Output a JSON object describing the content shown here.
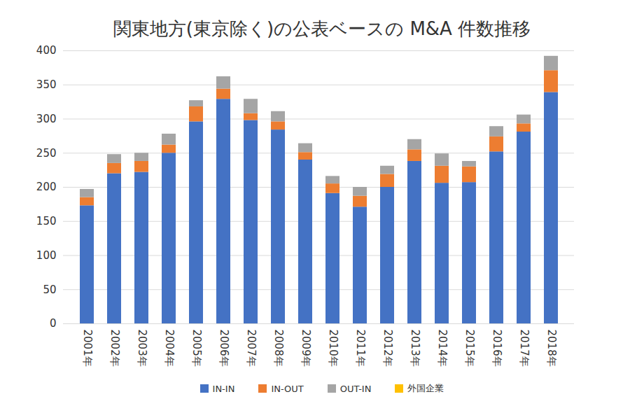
{
  "chart_data": {
    "type": "bar",
    "stacked": true,
    "title": "関東地方(東京除く)の公表ベースの M&A 件数推移",
    "categories": [
      "2001年",
      "2002年",
      "2003年",
      "2004年",
      "2005年",
      "2006年",
      "2007年",
      "2008年",
      "2009年",
      "2010年",
      "2011年",
      "2012年",
      "2013年",
      "2014年",
      "2015年",
      "2016年",
      "2017年",
      "2018年"
    ],
    "series": [
      {
        "name": "IN-IN",
        "color": "#4472c4",
        "values": [
          173,
          220,
          222,
          250,
          296,
          329,
          298,
          284,
          240,
          191,
          171,
          200,
          238,
          206,
          207,
          252,
          281,
          339
        ]
      },
      {
        "name": "IN-OUT",
        "color": "#ed7d31",
        "values": [
          12,
          15,
          16,
          12,
          22,
          15,
          10,
          12,
          11,
          14,
          16,
          19,
          17,
          25,
          23,
          22,
          12,
          32
        ]
      },
      {
        "name": "OUT-IN",
        "color": "#a5a5a5",
        "values": [
          12,
          13,
          12,
          16,
          9,
          18,
          21,
          15,
          13,
          11,
          13,
          12,
          15,
          18,
          8,
          15,
          13,
          21
        ]
      },
      {
        "name": "外国企業",
        "color": "#ffc000",
        "values": [
          0,
          0,
          0,
          0,
          0,
          0,
          0,
          0,
          0,
          0,
          0,
          0,
          0,
          0,
          0,
          0,
          0,
          0
        ]
      }
    ],
    "ylim": [
      0,
      400
    ],
    "yticks": [
      0,
      50,
      100,
      150,
      200,
      250,
      300,
      350,
      400
    ],
    "grid": true,
    "legend": "bottom"
  }
}
